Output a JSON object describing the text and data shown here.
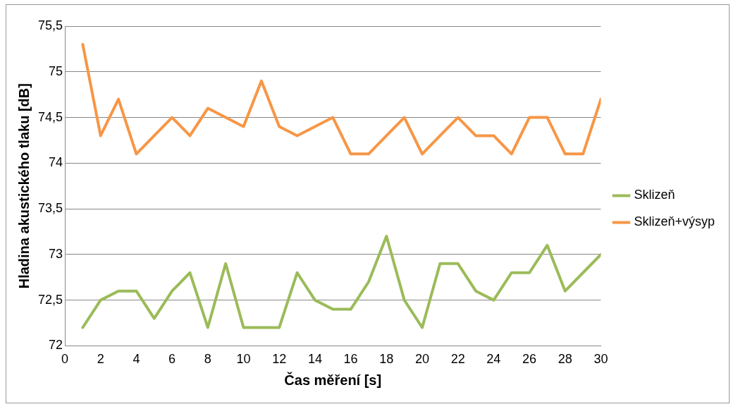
{
  "chart_data": {
    "type": "line",
    "xlabel": "Čas měření [s]",
    "ylabel": "Hladina akustického tlaku [dB]",
    "x": [
      1,
      2,
      3,
      4,
      5,
      6,
      7,
      8,
      9,
      10,
      11,
      12,
      13,
      14,
      15,
      16,
      17,
      18,
      19,
      20,
      21,
      22,
      23,
      24,
      25,
      26,
      27,
      28,
      29,
      30
    ],
    "series": [
      {
        "name": "Sklizeň",
        "color": "#9bbb59",
        "values": [
          72.2,
          72.5,
          72.6,
          72.6,
          72.3,
          72.6,
          72.8,
          72.2,
          72.9,
          72.2,
          72.2,
          72.2,
          72.8,
          72.5,
          72.4,
          72.4,
          72.7,
          73.2,
          72.5,
          72.2,
          72.9,
          72.9,
          72.6,
          72.5,
          72.8,
          72.8,
          73.1,
          72.6,
          72.8,
          73.0
        ]
      },
      {
        "name": "Sklizeň+výsyp",
        "color": "#f79646",
        "values": [
          75.3,
          74.3,
          74.7,
          74.1,
          74.3,
          74.5,
          74.3,
          74.6,
          74.5,
          74.4,
          74.9,
          74.4,
          74.3,
          74.4,
          74.5,
          74.1,
          74.1,
          74.3,
          74.5,
          74.1,
          74.3,
          74.5,
          74.3,
          74.3,
          74.1,
          74.5,
          74.5,
          74.1,
          74.1,
          74.7
        ]
      }
    ],
    "xlim": [
      0,
      30
    ],
    "xticks": [
      0,
      2,
      4,
      6,
      8,
      10,
      12,
      14,
      16,
      18,
      20,
      22,
      24,
      26,
      28,
      30
    ],
    "ylim": [
      72,
      75.5
    ],
    "yticks": [
      72,
      {
        "value": 72.5,
        "label": "72,5"
      },
      73,
      {
        "value": 73.5,
        "label": "73,5"
      },
      74,
      {
        "value": 74.5,
        "label": "74,5"
      },
      75,
      {
        "value": 75.5,
        "label": "75,5"
      }
    ],
    "grid": "y",
    "legend": "right",
    "marker": "none",
    "line_style": "solid"
  }
}
